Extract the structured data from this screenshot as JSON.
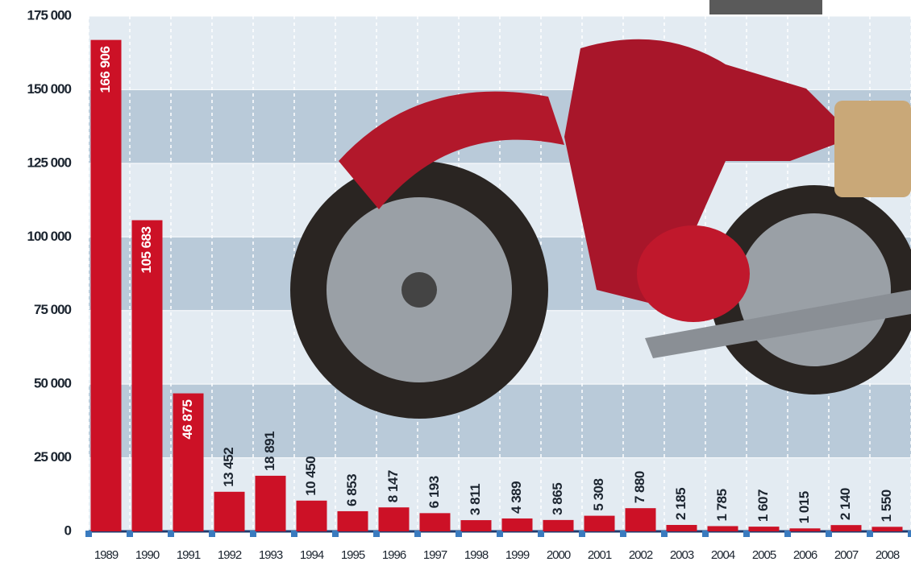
{
  "chart_data": {
    "type": "bar",
    "categories": [
      "1989",
      "1990",
      "1991",
      "1992",
      "1993",
      "1994",
      "1995",
      "1996",
      "1997",
      "1998",
      "1999",
      "2000",
      "2001",
      "2002",
      "2003",
      "2004",
      "2005",
      "2006",
      "2007",
      "2008"
    ],
    "values": [
      166906,
      105683,
      46875,
      13452,
      18891,
      10450,
      6853,
      8147,
      6193,
      3811,
      4389,
      3865,
      5308,
      7880,
      2185,
      1785,
      1607,
      1015,
      2140,
      1550
    ],
    "value_labels": [
      "166 906",
      "105 683",
      "46 875",
      "13 452",
      "18 891",
      "10 450",
      "6 853",
      "8 147",
      "6 193",
      "3 811",
      "4 389",
      "3 865",
      "5 308",
      "7 880",
      "2 185",
      "1 785",
      "1 607",
      "1 015",
      "2 140",
      "1 550"
    ],
    "color": "#cc1126",
    "ylim": [
      0,
      175000
    ],
    "yticks": [
      {
        "value": 0,
        "label": "0"
      },
      {
        "value": 25000,
        "label": "25 000"
      },
      {
        "value": 50000,
        "label": "50 000"
      },
      {
        "value": 75000,
        "label": "75 000"
      },
      {
        "value": 100000,
        "label": "100 000"
      },
      {
        "value": 125000,
        "label": "125 000"
      },
      {
        "value": 150000,
        "label": "150 000"
      },
      {
        "value": 175000,
        "label": "175 000"
      }
    ],
    "grid": true
  }
}
